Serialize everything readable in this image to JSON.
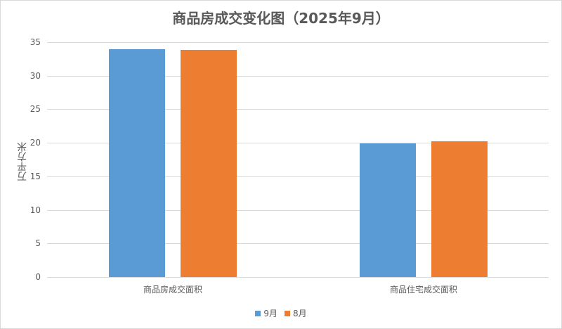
{
  "chart_data": {
    "type": "bar",
    "title": "商品房成交变化图（2025年9月）",
    "xlabel": "",
    "ylabel": "万平方米",
    "ylim": [
      0,
      35
    ],
    "yticks": [
      0,
      5,
      10,
      15,
      20,
      25,
      30,
      35
    ],
    "grid": true,
    "legend_position": "bottom",
    "categories": [
      "商品房成交面积",
      "商品住宅成交面积"
    ],
    "series": [
      {
        "name": "9月",
        "color": "#5b9bd5",
        "values": [
          34.0,
          19.9
        ]
      },
      {
        "name": "8月",
        "color": "#ed7d31",
        "values": [
          33.8,
          20.2
        ]
      }
    ]
  },
  "title": "商品房成交变化图（2025年9月）",
  "ylabel": "万平方米",
  "ticks": [
    "0",
    "5",
    "10",
    "15",
    "20",
    "25",
    "30",
    "35"
  ],
  "categories": [
    "商品房成交面积",
    "商品住宅成交面积"
  ],
  "legend": [
    "9月",
    "8月"
  ]
}
